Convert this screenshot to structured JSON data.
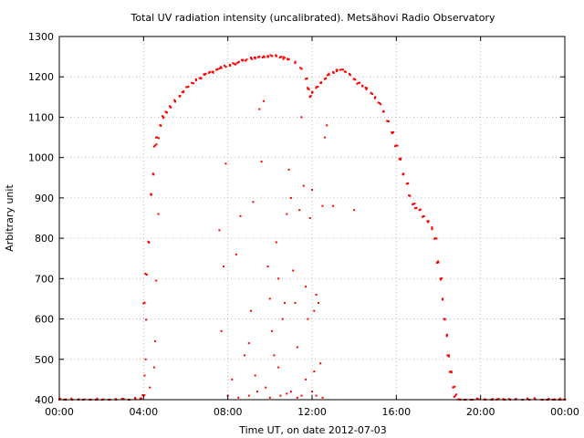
{
  "chart_data": {
    "type": "scatter",
    "title": "Total UV radiation intensity (uncalibrated). Metsähovi Radio Observatory",
    "xlabel": "Time UT, on date 2012-07-03",
    "ylabel": "Arbitrary unit",
    "xlim": [
      0,
      24
    ],
    "ylim": [
      400,
      1300
    ],
    "x_unit": "hours UT",
    "x_ticks": [
      {
        "value": 0,
        "label": "00:00"
      },
      {
        "value": 4,
        "label": "04:00"
      },
      {
        "value": 8,
        "label": "08:00"
      },
      {
        "value": 12,
        "label": "12:00"
      },
      {
        "value": 16,
        "label": "16:00"
      },
      {
        "value": 20,
        "label": "20:00"
      },
      {
        "value": 24,
        "label": "00:00"
      }
    ],
    "y_ticks": [
      400,
      500,
      600,
      700,
      800,
      900,
      1000,
      1100,
      1200,
      1300
    ],
    "grid": true,
    "grid_style": "dotted",
    "marker_color": "#ff0000",
    "series": [
      {
        "points": {
          "main_envelope": [
            [
              4.05,
              640
            ],
            [
              4.15,
              710
            ],
            [
              4.25,
              790
            ],
            [
              4.35,
              910
            ],
            [
              4.45,
              960
            ],
            [
              4.55,
              1030
            ],
            [
              4.65,
              1050
            ],
            [
              4.8,
              1080
            ],
            [
              4.95,
              1100
            ],
            [
              5.1,
              1112
            ],
            [
              5.3,
              1125
            ],
            [
              5.5,
              1140
            ],
            [
              5.7,
              1152
            ],
            [
              5.9,
              1164
            ],
            [
              6.1,
              1175
            ],
            [
              6.3,
              1185
            ],
            [
              6.5,
              1192
            ],
            [
              6.7,
              1198
            ],
            [
              6.9,
              1205
            ],
            [
              7.1,
              1210
            ],
            [
              7.3,
              1213
            ],
            [
              7.5,
              1218
            ],
            [
              7.7,
              1222
            ],
            [
              7.9,
              1225
            ],
            [
              8.1,
              1228
            ],
            [
              8.3,
              1232
            ],
            [
              8.5,
              1236
            ],
            [
              8.7,
              1240
            ],
            [
              8.9,
              1243
            ],
            [
              9.1,
              1246
            ],
            [
              9.3,
              1248
            ],
            [
              9.5,
              1250
            ],
            [
              9.7,
              1251
            ],
            [
              9.9,
              1252
            ],
            [
              10.1,
              1252
            ],
            [
              10.3,
              1251
            ],
            [
              10.5,
              1249
            ],
            [
              10.7,
              1247
            ],
            [
              10.9,
              1244
            ],
            [
              11.2,
              1235
            ],
            [
              11.5,
              1220
            ],
            [
              11.7,
              1195
            ],
            [
              11.8,
              1170
            ],
            [
              11.9,
              1150
            ],
            [
              12.0,
              1160
            ],
            [
              12.2,
              1175
            ],
            [
              12.4,
              1185
            ],
            [
              12.6,
              1195
            ],
            [
              12.8,
              1205
            ],
            [
              13.0,
              1212
            ],
            [
              13.2,
              1217
            ],
            [
              13.4,
              1218
            ],
            [
              13.6,
              1212
            ],
            [
              13.8,
              1205
            ],
            [
              14.0,
              1195
            ],
            [
              14.2,
              1185
            ],
            [
              14.4,
              1178
            ],
            [
              14.6,
              1172
            ],
            [
              14.8,
              1160
            ],
            [
              15.0,
              1150
            ],
            [
              15.2,
              1135
            ],
            [
              15.4,
              1115
            ],
            [
              15.6,
              1090
            ],
            [
              15.8,
              1060
            ],
            [
              16.0,
              1030
            ],
            [
              16.2,
              995
            ],
            [
              16.35,
              960
            ],
            [
              16.5,
              935
            ],
            [
              16.65,
              905
            ],
            [
              16.8,
              885
            ],
            [
              16.95,
              875
            ],
            [
              17.1,
              870
            ],
            [
              17.3,
              855
            ],
            [
              17.5,
              840
            ],
            [
              17.7,
              825
            ],
            [
              17.85,
              800
            ],
            [
              18.0,
              740
            ],
            [
              18.1,
              700
            ],
            [
              18.2,
              650
            ],
            [
              18.3,
              600
            ],
            [
              18.4,
              560
            ],
            [
              18.5,
              510
            ],
            [
              18.6,
              470
            ],
            [
              18.7,
              430
            ],
            [
              18.8,
              410
            ]
          ],
          "night_baseline": [
            [
              0.0,
              400
            ],
            [
              0.3,
              401
            ],
            [
              0.6,
              400
            ],
            [
              0.9,
              400
            ],
            [
              1.2,
              401
            ],
            [
              1.5,
              400
            ],
            [
              1.8,
              400
            ],
            [
              2.1,
              401
            ],
            [
              2.4,
              400
            ],
            [
              2.7,
              400
            ],
            [
              3.0,
              401
            ],
            [
              3.3,
              400
            ],
            [
              3.6,
              402
            ],
            [
              3.9,
              403
            ],
            [
              4.0,
              410
            ],
            [
              19.0,
              401
            ],
            [
              19.3,
              400
            ],
            [
              19.6,
              400
            ],
            [
              19.9,
              401
            ],
            [
              20.2,
              400
            ],
            [
              20.5,
              400
            ],
            [
              20.8,
              401
            ],
            [
              21.1,
              400
            ],
            [
              21.4,
              400
            ],
            [
              21.7,
              401
            ],
            [
              22.0,
              400
            ],
            [
              22.3,
              400
            ],
            [
              22.6,
              401
            ],
            [
              22.9,
              400
            ],
            [
              23.2,
              400
            ],
            [
              23.5,
              401
            ],
            [
              23.8,
              400
            ],
            [
              24.0,
              400
            ]
          ],
          "cloud_dips": [
            [
              4.05,
              460
            ],
            [
              4.1,
              500
            ],
            [
              4.12,
              598
            ],
            [
              4.3,
              430
            ],
            [
              4.5,
              480
            ],
            [
              4.55,
              545
            ],
            [
              4.6,
              695
            ],
            [
              4.7,
              860
            ],
            [
              7.6,
              820
            ],
            [
              7.7,
              570
            ],
            [
              7.8,
              730
            ],
            [
              7.9,
              985
            ],
            [
              8.0,
              410
            ],
            [
              8.2,
              450
            ],
            [
              8.4,
              760
            ],
            [
              8.6,
              855
            ],
            [
              8.8,
              510
            ],
            [
              9.0,
              540
            ],
            [
              9.1,
              620
            ],
            [
              9.2,
              890
            ],
            [
              9.5,
              1120
            ],
            [
              9.6,
              990
            ],
            [
              9.7,
              1140
            ],
            [
              9.9,
              730
            ],
            [
              10.0,
              650
            ],
            [
              10.1,
              570
            ],
            [
              10.2,
              510
            ],
            [
              10.3,
              790
            ],
            [
              10.4,
              700
            ],
            [
              10.6,
              600
            ],
            [
              10.7,
              640
            ],
            [
              10.8,
              860
            ],
            [
              10.9,
              970
            ],
            [
              11.0,
              900
            ],
            [
              11.1,
              720
            ],
            [
              11.2,
              640
            ],
            [
              11.3,
              530
            ],
            [
              11.4,
              870
            ],
            [
              11.5,
              1100
            ],
            [
              11.6,
              930
            ],
            [
              11.7,
              680
            ],
            [
              11.8,
              600
            ],
            [
              11.9,
              850
            ],
            [
              12.0,
              920
            ],
            [
              12.1,
              620
            ],
            [
              12.2,
              660
            ],
            [
              12.3,
              640
            ],
            [
              12.4,
              490
            ],
            [
              12.5,
              880
            ],
            [
              12.6,
              1050
            ],
            [
              12.7,
              1080
            ],
            [
              13.0,
              880
            ],
            [
              14.0,
              870
            ],
            [
              9.4,
              420
            ],
            [
              9.8,
              430
            ],
            [
              10.5,
              410
            ],
            [
              11.0,
              420
            ],
            [
              11.5,
              410
            ],
            [
              12.0,
              420
            ],
            [
              12.5,
              405
            ],
            [
              8.5,
              405
            ],
            [
              9.0,
              410
            ],
            [
              10.0,
              405
            ],
            [
              10.8,
              415
            ],
            [
              11.3,
              405
            ],
            [
              12.2,
              410
            ],
            [
              9.3,
              460
            ],
            [
              10.4,
              480
            ],
            [
              11.7,
              450
            ],
            [
              12.1,
              470
            ]
          ]
        }
      }
    ]
  }
}
